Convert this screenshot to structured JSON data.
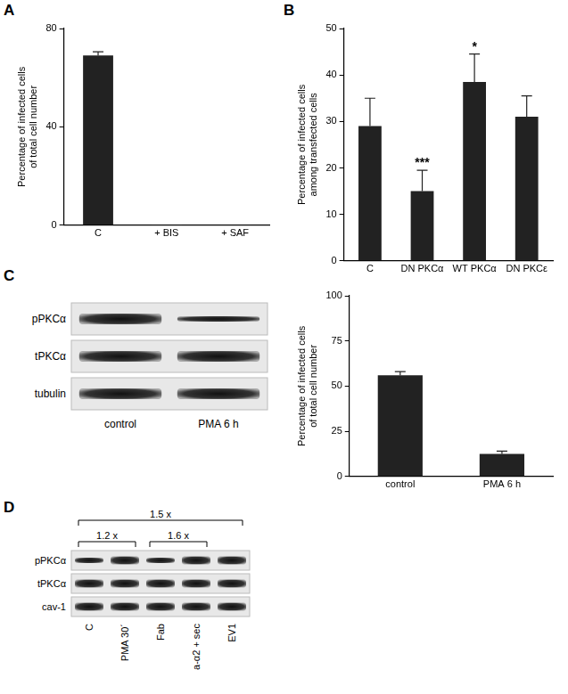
{
  "panel_labels": [
    "A",
    "B",
    "C",
    "D"
  ],
  "chart_data": [
    {
      "type": "bar",
      "y_label": [
        "Percentage of infected cells",
        "of total cell number"
      ],
      "categories": [
        "C",
        "+ BIS",
        "+ SAF"
      ],
      "values": [
        69,
        0.3,
        0.3
      ],
      "errors": [
        1.5,
        0,
        0
      ],
      "color": "#222222",
      "ylim": [
        0,
        80
      ],
      "yticks": [
        0,
        40,
        80
      ],
      "grid": false
    },
    {
      "type": "bar",
      "y_label": [
        "Percentage of infected cells",
        "among transfected cells"
      ],
      "categories": [
        "C",
        "DN PKCα",
        "WT PKCα",
        "DN PKCε"
      ],
      "values": [
        29,
        15,
        38.5,
        31
      ],
      "errors": [
        6,
        4.5,
        6,
        4.5
      ],
      "annotations": [
        null,
        "***",
        "*",
        null
      ],
      "color": "#222222",
      "ylim": [
        0,
        50
      ],
      "yticks": [
        0,
        10,
        20,
        30,
        40,
        50
      ],
      "grid": false
    },
    {
      "type": "bar",
      "y_label": [
        "Percentage of infected cells",
        "of total cell number"
      ],
      "categories": [
        "control",
        "PMA 6 h"
      ],
      "values": [
        56,
        12.5
      ],
      "errors": [
        2,
        1.5
      ],
      "color": "#222222",
      "ylim": [
        0,
        100
      ],
      "yticks": [
        0,
        25,
        50,
        75,
        100
      ],
      "grid": false
    }
  ],
  "blots": [
    {
      "rows": [
        "pPKCα",
        "tPKCα",
        "tubulin"
      ],
      "lanes": [
        "control",
        "PMA 6 h"
      ]
    },
    {
      "rows": [
        "pPKCα",
        "tPKCα",
        "cav-1"
      ],
      "lanes": [
        "C",
        "PMA 30´",
        "Fab",
        "a-α2 + sec",
        "EV1"
      ],
      "brackets": [
        {
          "label": "1.5 x",
          "from": 0,
          "to": 4
        },
        {
          "label": "1.2 x",
          "from": 0,
          "to": 1
        },
        {
          "label": "1.6 x",
          "from": 2,
          "to": 3
        }
      ]
    }
  ]
}
